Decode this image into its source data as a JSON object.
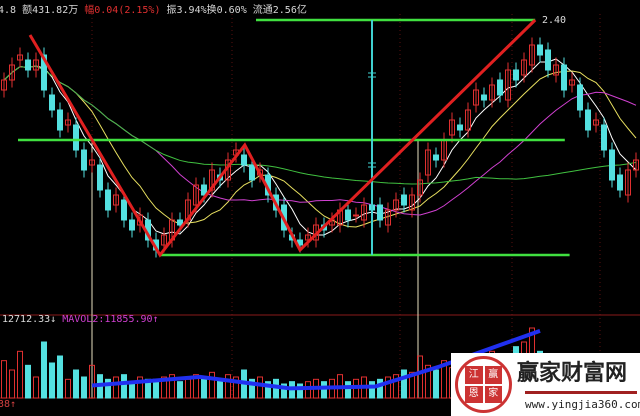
{
  "header": {
    "prefix": "4.8",
    "amount": "额431.82万",
    "change": "幅0.04(2.15%)",
    "amplitude": "振3.94%",
    "turnover": "换0.60%",
    "float_cap": "流通2.56亿"
  },
  "high_label": "2.40",
  "volume_panel": {
    "vol": "12712.33↓",
    "mavol": "MAVOL2:11855.90↑",
    "bottom_label": "38↑"
  },
  "logo": {
    "seal_chars": [
      "江",
      "赢",
      "恩",
      "家"
    ],
    "brand": "赢家财富网",
    "url": "www.yingjia360.com"
  },
  "colors": {
    "up": "#e03030",
    "down": "#54e0e0",
    "ma5": "#ffffff",
    "ma10": "#e8e060",
    "ma20": "#d040d0",
    "ma60": "#40c040",
    "trend": "#e02020",
    "level": "#40e040",
    "measure": "#40d0d0",
    "vol_trend": "#2030f0"
  },
  "chart_data": {
    "type": "candlestick",
    "price_high": 2.4,
    "closes": [
      2.28,
      2.31,
      2.33,
      2.3,
      2.32,
      2.26,
      2.22,
      2.18,
      2.2,
      2.14,
      2.1,
      2.12,
      2.06,
      2.02,
      2.05,
      2.0,
      1.98,
      2.01,
      1.96,
      1.94,
      1.97,
      2.0,
      1.99,
      2.04,
      2.07,
      2.05,
      2.1,
      2.08,
      2.12,
      2.14,
      2.11,
      2.08,
      2.1,
      2.05,
      2.02,
      1.98,
      1.96,
      1.95,
      1.97,
      1.99,
      1.98,
      2.0,
      2.02,
      2.0,
      2.01,
      2.03,
      2.02,
      2.0,
      2.02,
      2.04,
      2.03,
      2.05,
      2.08,
      2.14,
      2.12,
      2.16,
      2.2,
      2.18,
      2.22,
      2.26,
      2.24,
      2.27,
      2.25,
      2.3,
      2.28,
      2.32,
      2.35,
      2.33,
      2.3,
      2.31,
      2.26,
      2.28,
      2.22,
      2.18,
      2.2,
      2.14,
      2.08,
      2.06,
      2.1,
      2.12
    ],
    "volumes": [
      16000,
      12000,
      20000,
      14000,
      9000,
      24000,
      15000,
      18000,
      8000,
      12000,
      9000,
      14000,
      10000,
      8000,
      9000,
      10000,
      7000,
      9000,
      8000,
      8000,
      9000,
      10000,
      7000,
      8000,
      10000,
      9000,
      11000,
      8000,
      10000,
      9000,
      12000,
      8000,
      9000,
      7000,
      8000,
      6000,
      7000,
      6000,
      7000,
      8000,
      7000,
      8000,
      10000,
      7000,
      8000,
      9000,
      7000,
      8000,
      9000,
      10000,
      12000,
      11000,
      18000,
      14000,
      12000,
      16000,
      13000,
      15000,
      14000,
      17000,
      15000,
      20000,
      16000,
      18000,
      22000,
      24000,
      30000,
      20000,
      18000,
      15000,
      13000,
      12000,
      14000,
      11000,
      12000,
      10000,
      9000,
      11000,
      10000,
      9000
    ],
    "volume_max": 30000,
    "annotations": {
      "zigzag": [
        [
          3.25,
          2.37
        ],
        [
          19.5,
          1.93
        ],
        [
          30.1,
          2.15
        ],
        [
          37,
          1.94
        ],
        [
          66.4,
          2.4
        ]
      ],
      "levels": [
        {
          "price": 2.4,
          "from": 31.5,
          "to": 66.4
        },
        {
          "price": 2.16,
          "from": 1.75,
          "to": 70.1
        },
        {
          "price": 1.93,
          "from": 19.5,
          "to": 70.7
        }
      ],
      "measure_index": 46,
      "markers": [
        11,
        51.75
      ],
      "volume_trend": [
        [
          11,
          5340
        ],
        [
          24.5,
          9040
        ],
        [
          35.75,
          4110
        ],
        [
          46.4,
          4930
        ],
        [
          54.5,
          13560
        ],
        [
          67,
          28770
        ]
      ]
    }
  }
}
